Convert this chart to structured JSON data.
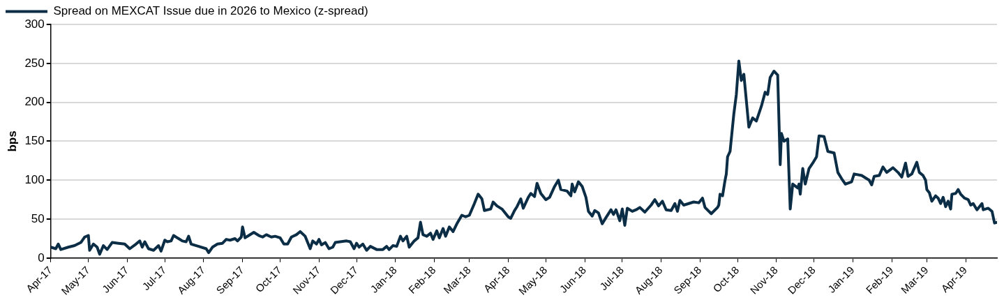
{
  "chart_data": {
    "type": "line",
    "ylabel": "bps",
    "ylim": [
      0,
      300
    ],
    "yticks": [
      0,
      50,
      100,
      150,
      200,
      250,
      300
    ],
    "xlim": [
      "2017-04-01",
      "2019-04-26"
    ],
    "xticks": [
      {
        "value": "2017-04-01",
        "label": "Apr-17"
      },
      {
        "value": "2017-05-01",
        "label": "May-17"
      },
      {
        "value": "2017-06-01",
        "label": "Jun-17"
      },
      {
        "value": "2017-07-01",
        "label": "Jul-17"
      },
      {
        "value": "2017-08-01",
        "label": "Aug-17"
      },
      {
        "value": "2017-09-01",
        "label": "Sep-17"
      },
      {
        "value": "2017-10-01",
        "label": "Oct-17"
      },
      {
        "value": "2017-11-01",
        "label": "Nov-17"
      },
      {
        "value": "2017-12-01",
        "label": "Dec-17"
      },
      {
        "value": "2018-01-01",
        "label": "Jan-18"
      },
      {
        "value": "2018-02-01",
        "label": "Feb-18"
      },
      {
        "value": "2018-03-01",
        "label": "Mar-18"
      },
      {
        "value": "2018-04-01",
        "label": "Apr-18"
      },
      {
        "value": "2018-05-01",
        "label": "May-18"
      },
      {
        "value": "2018-06-01",
        "label": "Jun-18"
      },
      {
        "value": "2018-07-01",
        "label": "Jul-18"
      },
      {
        "value": "2018-08-01",
        "label": "Aug-18"
      },
      {
        "value": "2018-09-01",
        "label": "Sep-18"
      },
      {
        "value": "2018-10-01",
        "label": "Oct-18"
      },
      {
        "value": "2018-11-01",
        "label": "Nov-18"
      },
      {
        "value": "2018-12-01",
        "label": "Dec-18"
      },
      {
        "value": "2019-01-01",
        "label": "Jan-19"
      },
      {
        "value": "2019-02-01",
        "label": "Feb-19"
      },
      {
        "value": "2019-03-01",
        "label": "Mar-19"
      },
      {
        "value": "2019-04-01",
        "label": "Apr-19"
      }
    ],
    "grid": "y",
    "legend": "top left",
    "marker": "none",
    "line_style": "solid",
    "series": [
      {
        "name": "Spread on MEXCAT Issue due in 2026 to Mexico (z-spread)",
        "color": "#0b2d45",
        "x": [
          "2017-04-01",
          "2017-04-05",
          "2017-04-07",
          "2017-04-09",
          "2017-04-15",
          "2017-04-20",
          "2017-04-25",
          "2017-04-28",
          "2017-05-01",
          "2017-05-02",
          "2017-05-05",
          "2017-05-08",
          "2017-05-10",
          "2017-05-13",
          "2017-05-16",
          "2017-05-20",
          "2017-05-25",
          "2017-05-30",
          "2017-06-03",
          "2017-06-08",
          "2017-06-11",
          "2017-06-13",
          "2017-06-15",
          "2017-06-18",
          "2017-06-22",
          "2017-06-26",
          "2017-06-28",
          "2017-07-01",
          "2017-07-03",
          "2017-07-06",
          "2017-07-08",
          "2017-07-12",
          "2017-07-15",
          "2017-07-18",
          "2017-07-20",
          "2017-07-22",
          "2017-07-28",
          "2017-08-03",
          "2017-08-05",
          "2017-08-08",
          "2017-08-12",
          "2017-08-16",
          "2017-08-19",
          "2017-08-22",
          "2017-08-26",
          "2017-08-28",
          "2017-08-31",
          "2017-09-01",
          "2017-09-03",
          "2017-09-06",
          "2017-09-10",
          "2017-09-14",
          "2017-09-17",
          "2017-09-20",
          "2017-09-24",
          "2017-09-27",
          "2017-10-01",
          "2017-10-04",
          "2017-10-07",
          "2017-10-10",
          "2017-10-14",
          "2017-10-17",
          "2017-10-21",
          "2017-10-25",
          "2017-10-27",
          "2017-10-30",
          "2017-11-01",
          "2017-11-03",
          "2017-11-06",
          "2017-11-09",
          "2017-11-12",
          "2017-11-14",
          "2017-11-18",
          "2017-11-23",
          "2017-11-26",
          "2017-11-29",
          "2017-12-01",
          "2017-12-03",
          "2017-12-06",
          "2017-12-09",
          "2017-12-12",
          "2017-12-17",
          "2017-12-22",
          "2017-12-25",
          "2017-12-27",
          "2017-12-30",
          "2018-01-02",
          "2018-01-05",
          "2018-01-07",
          "2018-01-10",
          "2018-01-12",
          "2018-01-16",
          "2018-01-19",
          "2018-01-21",
          "2018-01-23",
          "2018-01-26",
          "2018-01-29",
          "2018-01-31",
          "2018-02-03",
          "2018-02-05",
          "2018-02-08",
          "2018-02-10",
          "2018-02-13",
          "2018-02-16",
          "2018-02-19",
          "2018-02-23",
          "2018-02-26",
          "2018-03-01",
          "2018-03-05",
          "2018-03-08",
          "2018-03-11",
          "2018-03-13",
          "2018-03-18",
          "2018-03-20",
          "2018-03-23",
          "2018-03-27",
          "2018-04-01",
          "2018-04-03",
          "2018-04-06",
          "2018-04-08",
          "2018-04-11",
          "2018-04-13",
          "2018-04-17",
          "2018-04-19",
          "2018-04-22",
          "2018-04-24",
          "2018-04-27",
          "2018-05-01",
          "2018-05-04",
          "2018-05-08",
          "2018-05-11",
          "2018-05-13",
          "2018-05-18",
          "2018-05-21",
          "2018-05-22",
          "2018-05-24",
          "2018-05-27",
          "2018-05-30",
          "2018-06-02",
          "2018-06-04",
          "2018-06-07",
          "2018-06-09",
          "2018-06-12",
          "2018-06-15",
          "2018-06-18",
          "2018-06-22",
          "2018-06-24",
          "2018-06-26",
          "2018-06-29",
          "2018-07-01",
          "2018-07-03",
          "2018-07-05",
          "2018-07-09",
          "2018-07-12",
          "2018-07-15",
          "2018-07-19",
          "2018-07-24",
          "2018-07-27",
          "2018-07-30",
          "2018-08-02",
          "2018-08-05",
          "2018-08-09",
          "2018-08-12",
          "2018-08-14",
          "2018-08-16",
          "2018-08-19",
          "2018-08-23",
          "2018-08-27",
          "2018-08-31",
          "2018-09-03",
          "2018-09-05",
          "2018-09-10",
          "2018-09-15",
          "2018-09-16",
          "2018-09-17",
          "2018-09-19",
          "2018-09-21",
          "2018-09-22",
          "2018-09-23",
          "2018-09-25",
          "2018-09-28",
          "2018-09-30",
          "2018-10-02",
          "2018-10-04",
          "2018-10-06",
          "2018-10-10",
          "2018-10-13",
          "2018-10-16",
          "2018-10-20",
          "2018-10-23",
          "2018-10-25",
          "2018-10-27",
          "2018-10-30",
          "2018-11-02",
          "2018-11-04",
          "2018-11-05",
          "2018-11-07",
          "2018-11-10",
          "2018-11-12",
          "2018-11-14",
          "2018-11-18",
          "2018-11-19",
          "2018-11-20",
          "2018-11-22",
          "2018-11-24",
          "2018-11-27",
          "2018-11-30",
          "2018-12-03",
          "2018-12-05",
          "2018-12-09",
          "2018-12-12",
          "2018-12-17",
          "2018-12-20",
          "2018-12-23",
          "2018-12-26",
          "2018-12-31",
          "2019-01-02",
          "2019-01-08",
          "2019-01-14",
          "2019-01-16",
          "2019-01-18",
          "2019-01-22",
          "2019-01-25",
          "2019-01-28",
          "2019-02-02",
          "2019-02-06",
          "2019-02-09",
          "2019-02-12",
          "2019-02-14",
          "2019-02-17",
          "2019-02-21",
          "2019-02-23",
          "2019-02-26",
          "2019-02-28",
          "2019-03-01",
          "2019-03-03",
          "2019-03-05",
          "2019-03-08",
          "2019-03-10",
          "2019-03-12",
          "2019-03-14",
          "2019-03-16",
          "2019-03-18",
          "2019-03-20",
          "2019-03-21",
          "2019-03-24",
          "2019-03-26",
          "2019-03-28",
          "2019-03-31",
          "2019-04-03",
          "2019-04-05",
          "2019-04-07",
          "2019-04-10",
          "2019-04-14",
          "2019-04-15",
          "2019-04-19",
          "2019-04-22",
          "2019-04-24",
          "2019-04-26"
        ],
        "values": [
          14,
          12,
          18,
          11,
          14,
          16,
          20,
          27,
          29,
          10,
          18,
          14,
          5,
          16,
          11,
          20,
          19,
          18,
          12,
          18,
          22,
          14,
          21,
          12,
          10,
          16,
          9,
          23,
          21,
          22,
          29,
          25,
          22,
          21,
          28,
          18,
          15,
          12,
          7,
          14,
          18,
          19,
          24,
          23,
          25,
          22,
          27,
          40,
          26,
          29,
          33,
          29,
          27,
          30,
          27,
          28,
          26,
          18,
          18,
          27,
          30,
          34,
          28,
          12,
          22,
          18,
          24,
          17,
          20,
          12,
          14,
          20,
          21,
          22,
          21,
          12,
          19,
          14,
          18,
          10,
          15,
          11,
          11,
          15,
          11,
          16,
          15,
          28,
          22,
          28,
          14,
          22,
          26,
          46,
          30,
          28,
          32,
          24,
          35,
          26,
          38,
          28,
          40,
          34,
          44,
          55,
          53,
          55,
          70,
          82,
          76,
          61,
          63,
          72,
          67,
          63,
          53,
          51,
          61,
          66,
          76,
          64,
          78,
          83,
          79,
          96,
          83,
          75,
          78,
          92,
          100,
          88,
          86,
          80,
          95,
          85,
          98,
          92,
          78,
          60,
          54,
          61,
          58,
          44,
          52,
          62,
          56,
          62,
          48,
          63,
          42,
          64,
          60,
          62,
          65,
          59,
          68,
          75,
          67,
          73,
          62,
          61,
          70,
          60,
          74,
          68,
          70,
          72,
          71,
          77,
          65,
          57,
          65,
          68,
          82,
          80,
          100,
          108,
          130,
          137,
          185,
          210,
          253,
          228,
          236,
          168,
          180,
          176,
          195,
          213,
          210,
          232,
          240,
          235,
          120,
          160,
          150,
          153,
          63,
          95,
          90,
          95,
          82,
          115,
          95,
          115,
          122,
          130,
          157,
          156,
          137,
          135,
          110,
          102,
          95,
          98,
          108,
          106,
          100,
          94,
          105,
          106,
          117,
          110,
          116,
          110,
          104,
          122,
          105,
          108,
          123,
          110,
          106,
          100,
          88,
          84,
          73,
          80,
          77,
          70,
          78,
          66,
          73,
          63,
          82,
          83,
          88,
          82,
          77,
          75,
          68,
          70,
          62,
          70,
          62,
          64,
          60,
          45,
          46
        ]
      }
    ]
  }
}
